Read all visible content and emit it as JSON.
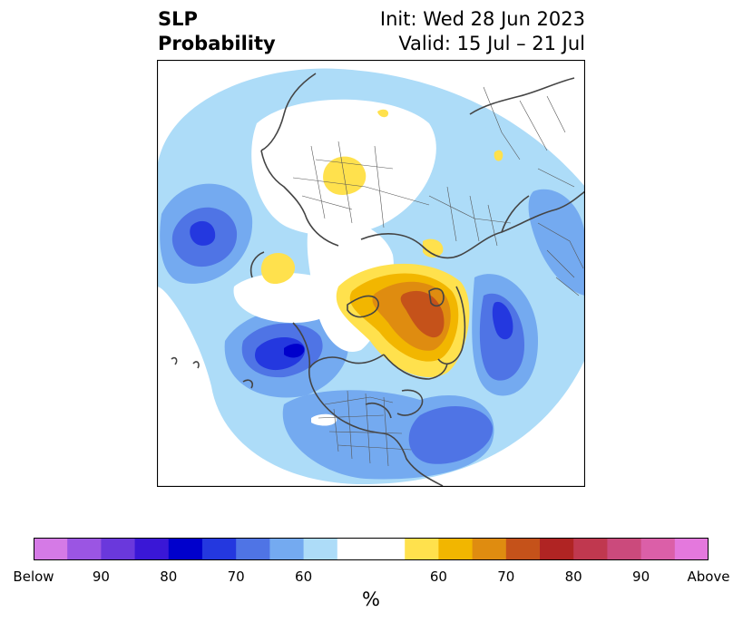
{
  "header": {
    "variable": "SLP",
    "product": "Probability",
    "init": "Init: Wed 28 Jun 2023",
    "valid": "Valid: 15 Jul – 21 Jul"
  },
  "colorbar": {
    "unit": "%",
    "colors": [
      "#d57ae6",
      "#9b55e3",
      "#6a38dc",
      "#3a17d6",
      "#0000cc",
      "#2438df",
      "#4f74e5",
      "#74aaf0",
      "#addcf8",
      "#ffffff",
      "#ffffff",
      "#ffe14d",
      "#f2b600",
      "#df8c10",
      "#c5521a",
      "#b02423",
      "#c0384f",
      "#cb4a7c",
      "#db5fa8",
      "#e478dd"
    ],
    "tick_labels": [
      "Below",
      "90",
      "80",
      "70",
      "60",
      "60",
      "70",
      "80",
      "90",
      "Above"
    ]
  }
}
